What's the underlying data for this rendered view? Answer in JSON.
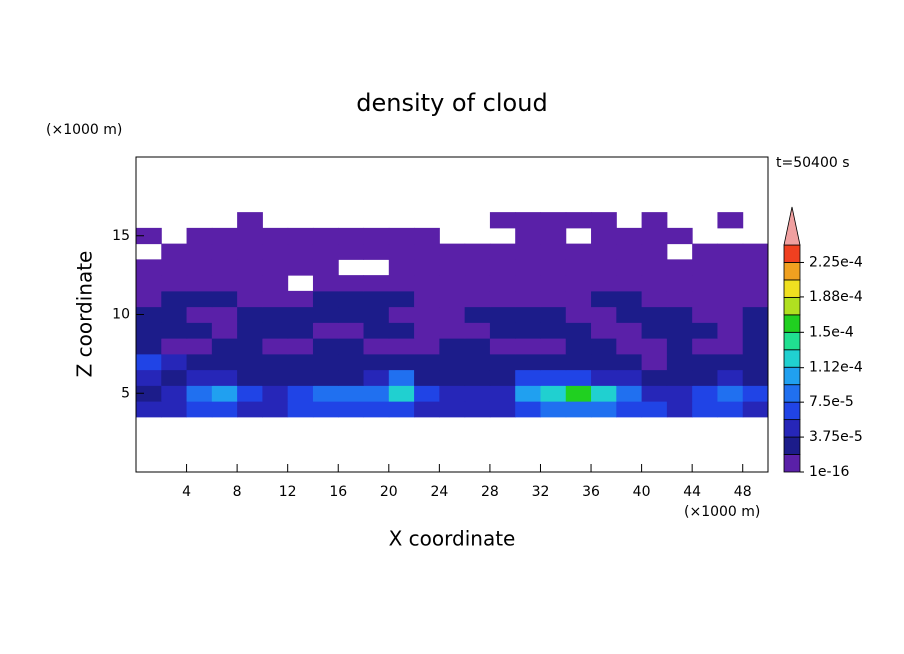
{
  "chart_data": {
    "type": "contour",
    "title": "density of cloud",
    "x_label": "X coordinate",
    "y_label": "Z coordinate",
    "x_unit": "(×1000 m)",
    "y_unit": "(×1000 m)",
    "annotation": "t=50400 s",
    "xlim": [
      0,
      50
    ],
    "ylim": [
      0,
      20
    ],
    "xticks": [
      4,
      8,
      12,
      16,
      20,
      24,
      28,
      32,
      36,
      40,
      44,
      48
    ],
    "yticks": [
      5,
      10,
      15
    ],
    "grid_x": [
      0,
      2,
      4,
      6,
      8,
      10,
      12,
      14,
      16,
      18,
      20,
      22,
      24,
      26,
      28,
      30,
      32,
      34,
      36,
      38,
      40,
      42,
      44,
      46,
      48,
      50
    ],
    "grid_z": [
      3.5,
      4.5,
      5.5,
      6.5,
      7.5,
      8.5,
      9.5,
      10.5,
      11.5,
      12.5,
      13.5,
      14.5,
      15.5,
      16.5
    ],
    "values": [
      [
        5e-05,
        5e-05,
        6e-05,
        6e-05,
        5e-05,
        5e-05,
        6e-05,
        7e-05,
        6e-05,
        6e-05,
        7e-05,
        5e-05,
        5e-05,
        5e-05,
        5e-05,
        7e-05,
        8e-05,
        9e-05,
        8e-05,
        7e-05,
        6e-05,
        5e-05,
        6e-05,
        6e-05,
        5e-05
      ],
      [
        3e-05,
        5e-05,
        9e-05,
        0.00011,
        6e-05,
        5e-05,
        7e-05,
        9e-05,
        8e-05,
        9e-05,
        0.00012,
        6e-05,
        4e-05,
        4e-05,
        5e-05,
        0.00011,
        0.00013,
        0.00015,
        0.00012,
        9e-05,
        5e-05,
        4e-05,
        7e-05,
        9e-05,
        6e-05
      ],
      [
        4e-05,
        3e-05,
        4e-05,
        5e-05,
        3e-05,
        2e-05,
        2e-05,
        3e-05,
        3e-05,
        4e-05,
        8e-05,
        3e-05,
        2e-05,
        3e-05,
        3e-05,
        6e-05,
        7e-05,
        6e-05,
        5e-05,
        4e-05,
        3e-05,
        2e-05,
        3e-05,
        4e-05,
        3e-05
      ],
      [
        6e-05,
        4e-05,
        2e-05,
        3e-05,
        2e-05,
        2e-05,
        2e-05,
        2e-05,
        2e-05,
        2e-05,
        3e-05,
        2e-05,
        2e-05,
        2e-05,
        2e-05,
        2e-05,
        3e-05,
        2e-05,
        2e-05,
        2e-05,
        1e-05,
        2e-05,
        2e-05,
        3e-05,
        2e-05
      ],
      [
        2e-05,
        1e-05,
        1e-05,
        2e-05,
        2e-05,
        1e-05,
        1e-05,
        2e-05,
        2e-05,
        1e-05,
        1e-05,
        1e-05,
        2e-05,
        2e-05,
        1e-05,
        1e-05,
        1e-05,
        2e-05,
        2e-05,
        1e-05,
        1e-05,
        2e-05,
        1e-05,
        1e-05,
        2e-05
      ],
      [
        2e-05,
        2e-05,
        2e-05,
        1e-05,
        2e-05,
        2e-05,
        2e-05,
        1e-05,
        1e-05,
        2e-05,
        2e-05,
        1e-05,
        1e-05,
        1e-05,
        2e-05,
        2e-05,
        2e-05,
        2e-05,
        1e-05,
        1e-05,
        2e-05,
        2e-05,
        2e-05,
        1e-05,
        2e-05
      ],
      [
        2e-05,
        2e-05,
        1e-05,
        1e-05,
        2e-05,
        2e-05,
        2e-05,
        2e-05,
        2e-05,
        2e-05,
        1e-05,
        1e-05,
        1e-05,
        2e-05,
        2e-05,
        2e-05,
        2e-05,
        1e-05,
        1e-05,
        2e-05,
        2e-05,
        2e-05,
        1e-05,
        1e-05,
        2e-05
      ],
      [
        1e-05,
        2e-05,
        2e-05,
        2e-05,
        1e-05,
        1e-05,
        1e-05,
        2e-05,
        2e-05,
        2e-05,
        2e-05,
        1e-05,
        1e-05,
        1e-05,
        1e-05,
        1e-05,
        1e-05,
        1e-05,
        2e-05,
        2e-05,
        1e-05,
        1e-05,
        1e-05,
        1e-05,
        1e-05
      ],
      [
        1e-05,
        1e-05,
        1e-05,
        1e-05,
        1e-05,
        1e-05,
        null,
        1e-05,
        1e-05,
        1e-05,
        1e-05,
        1e-05,
        1e-05,
        1e-05,
        1e-05,
        1e-05,
        1e-05,
        1e-05,
        1e-05,
        1e-05,
        1e-05,
        1e-05,
        1e-05,
        1e-05,
        1e-05
      ],
      [
        1e-05,
        1e-05,
        1e-05,
        1e-05,
        1e-05,
        1e-05,
        1e-05,
        1e-05,
        null,
        null,
        1e-05,
        1e-05,
        1e-05,
        1e-05,
        1e-05,
        1e-05,
        1e-05,
        1e-05,
        1e-05,
        1e-05,
        1e-05,
        1e-05,
        1e-05,
        1e-05,
        1e-05
      ],
      [
        null,
        1e-05,
        1e-05,
        1e-05,
        1e-05,
        1e-05,
        1e-05,
        1e-05,
        1e-05,
        1e-05,
        1e-05,
        1e-05,
        1e-05,
        1e-05,
        1e-05,
        1e-05,
        1e-05,
        1e-05,
        1e-05,
        1e-05,
        1e-05,
        null,
        1e-05,
        1e-05,
        1e-05
      ],
      [
        1e-05,
        null,
        1e-05,
        1e-05,
        1e-05,
        1e-05,
        1e-05,
        1e-05,
        1e-05,
        1e-05,
        1e-05,
        1e-05,
        null,
        null,
        null,
        1e-05,
        1e-05,
        null,
        1e-05,
        1e-05,
        1e-05,
        1e-05,
        null,
        null,
        null
      ],
      [
        null,
        null,
        null,
        null,
        1e-05,
        null,
        null,
        null,
        null,
        null,
        null,
        null,
        null,
        null,
        1e-05,
        1e-05,
        1e-05,
        1e-05,
        1e-05,
        null,
        1e-05,
        null,
        null,
        1e-05,
        null
      ]
    ],
    "levels": [
      1e-16,
      1.875e-05,
      3.75e-05,
      5.625e-05,
      7.5e-05,
      9.375e-05,
      0.0001125,
      0.00013125,
      0.00015,
      0.00016875,
      0.0001875,
      0.00020625,
      0.000225,
      0.00024375
    ],
    "colors": [
      "#5a20a8",
      "#1c1c8a",
      "#2626b8",
      "#2044e6",
      "#2070f0",
      "#20a0f0",
      "#20d0d0",
      "#20e090",
      "#20d020",
      "#b0e020",
      "#f0e020",
      "#f0a020",
      "#f04020"
    ],
    "extend_color": "#f0a0a0",
    "colorbar_ticks": [
      1e-16,
      {
        "value": 3.75e-05,
        "label": "3.75e-5"
      },
      {
        "value": 7.5e-05,
        "label": "7.5e-5"
      },
      {
        "value": 0.000112,
        "label": "1.12e-4"
      },
      {
        "value": 0.00015,
        "label": "1.5e-4"
      },
      {
        "value": 0.000188,
        "label": "1.88e-4"
      },
      {
        "value": 0.000225,
        "label": "2.25e-4"
      }
    ]
  }
}
